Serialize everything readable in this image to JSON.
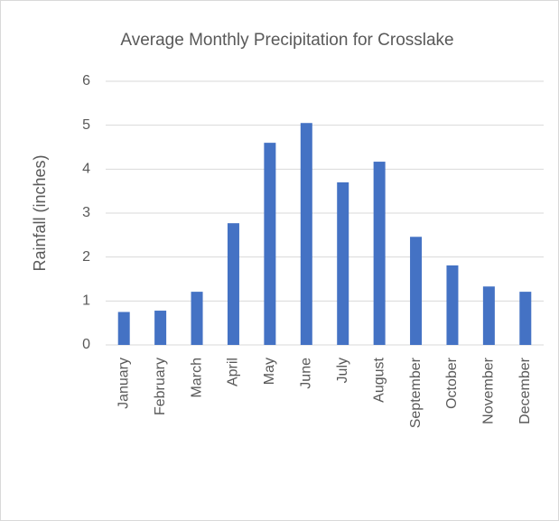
{
  "chart_data": {
    "type": "bar",
    "title": "Average Monthly Precipitation for Crosslake",
    "y_label": "Rainfall (inches)",
    "categories": [
      "January",
      "February",
      "March",
      "April",
      "May",
      "June",
      "July",
      "August",
      "September",
      "October",
      "November",
      "December"
    ],
    "values": [
      0.75,
      0.78,
      1.21,
      2.77,
      4.6,
      5.05,
      3.7,
      4.17,
      2.46,
      1.81,
      1.33,
      1.21
    ],
    "color": "#4472c4",
    "ylim": [
      0,
      6
    ],
    "yticks": [
      0,
      1,
      2,
      3,
      4,
      5,
      6
    ],
    "grid": true
  }
}
